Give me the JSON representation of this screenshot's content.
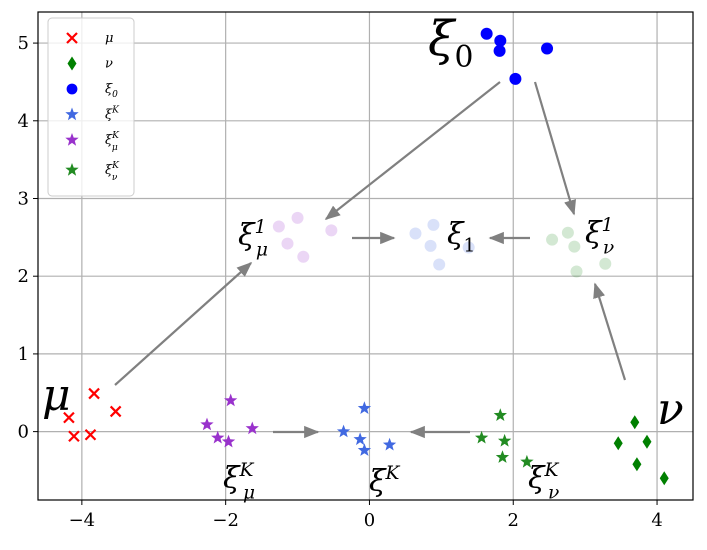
{
  "chart_data": {
    "type": "scatter",
    "xlim": [
      -4.61,
      4.5
    ],
    "ylim": [
      -0.88,
      5.4
    ],
    "xticks": [
      {
        "value": -4,
        "label": "−4"
      },
      {
        "value": -2,
        "label": "−2"
      },
      0,
      2,
      4
    ],
    "yticks": [
      0,
      1,
      2,
      3,
      4,
      5
    ],
    "grid": true,
    "legend": "upper left",
    "series": [
      {
        "name": "μ",
        "marker": "x",
        "color": "#ff0000",
        "x": [
          -4.18,
          -3.83,
          -3.53,
          -4.11,
          -3.88
        ],
        "y": [
          0.18,
          0.49,
          0.26,
          -0.06,
          -0.04
        ]
      },
      {
        "name": "ν",
        "marker": "diamond",
        "color": "#008000",
        "x": [
          3.69,
          3.46,
          3.86,
          3.72,
          4.1
        ],
        "y": [
          0.12,
          -0.15,
          -0.13,
          -0.42,
          -0.6
        ]
      },
      {
        "name": "ξ",
        "sub": "0",
        "marker": "circle",
        "color": "#0000ff",
        "x": [
          1.63,
          1.82,
          1.81,
          2.47,
          2.03
        ],
        "y": [
          5.12,
          5.03,
          4.9,
          4.93,
          4.54
        ]
      },
      {
        "name": "ξ",
        "sup": "K",
        "marker": "star",
        "color": "#4169e1",
        "x": [
          -0.07,
          -0.36,
          -0.13,
          -0.07,
          0.28
        ],
        "y": [
          0.3,
          0,
          -0.1,
          -0.24,
          -0.17
        ]
      },
      {
        "name": "ξ",
        "sub": "μ",
        "sup": "K",
        "marker": "star",
        "color": "#9932cc",
        "x": [
          -2.26,
          -1.93,
          -2.11,
          -1.96,
          -1.63
        ],
        "y": [
          0.09,
          0.4,
          -0.08,
          -0.13,
          0.04
        ]
      },
      {
        "name": "ξ",
        "sub": "ν",
        "sup": "K",
        "marker": "star",
        "color": "#228b22",
        "x": [
          1.82,
          1.56,
          1.88,
          1.85,
          2.19
        ],
        "y": [
          0.21,
          -0.08,
          -0.12,
          -0.33,
          -0.39
        ]
      },
      {
        "marker": "circle",
        "color": "#9932cc",
        "alpha": 0.2,
        "x": [
          -1.26,
          -1.0,
          -1.14,
          -0.92,
          -0.53
        ],
        "y": [
          2.64,
          2.75,
          2.42,
          2.25,
          2.59
        ]
      },
      {
        "marker": "circle",
        "color": "#4169e1",
        "alpha": 0.2,
        "x": [
          0.64,
          0.89,
          0.85,
          0.97,
          1.38
        ],
        "y": [
          2.55,
          2.66,
          2.39,
          2.15,
          2.37
        ]
      },
      {
        "marker": "circle",
        "color": "#228b22",
        "alpha": 0.2,
        "x": [
          2.54,
          2.76,
          2.85,
          2.88,
          3.28
        ],
        "y": [
          2.47,
          2.56,
          2.38,
          2.06,
          2.16
        ]
      }
    ],
    "annotations": [
      {
        "text": "ξ",
        "sub": "0"
      },
      {
        "text": "ξ",
        "sub": "μ",
        "sup": "1"
      },
      {
        "text": "ξ",
        "sub": "1"
      },
      {
        "text": "ξ",
        "sub": "ν",
        "sup": "1"
      },
      {
        "text": "μ"
      },
      {
        "text": "ν"
      },
      {
        "text": "ξ",
        "sub": "μ",
        "sup": "K"
      },
      {
        "text": "ξ",
        "sup": "K"
      },
      {
        "text": "ξ",
        "sub": "ν",
        "sup": "K"
      }
    ]
  }
}
